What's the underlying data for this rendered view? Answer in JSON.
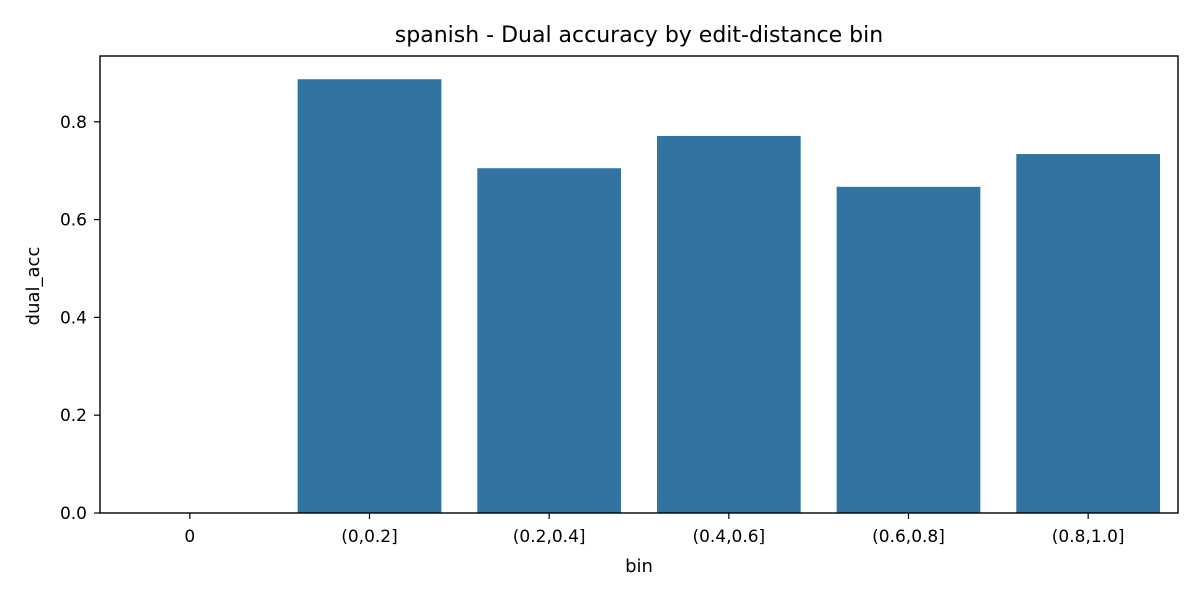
{
  "chart_data": {
    "type": "bar",
    "title": "spanish - Dual accuracy by edit-distance bin",
    "xlabel": "bin",
    "ylabel": "dual_acc",
    "categories": [
      "0",
      "(0,0.2]",
      "(0.2,0.4]",
      "(0.4,0.6]",
      "(0.6,0.8]",
      "(0.8,1.0]"
    ],
    "values": [
      0.0,
      0.887,
      0.705,
      0.771,
      0.667,
      0.734
    ],
    "ylim": [
      0,
      0.9345
    ],
    "yticks": [
      0.0,
      0.2,
      0.4,
      0.6,
      0.8
    ],
    "ytick_labels": [
      "0.0",
      "0.2",
      "0.4",
      "0.6",
      "0.8"
    ],
    "grid": false,
    "legend": "none",
    "bar_color": "#3274a1",
    "axis_color": "#000000"
  }
}
